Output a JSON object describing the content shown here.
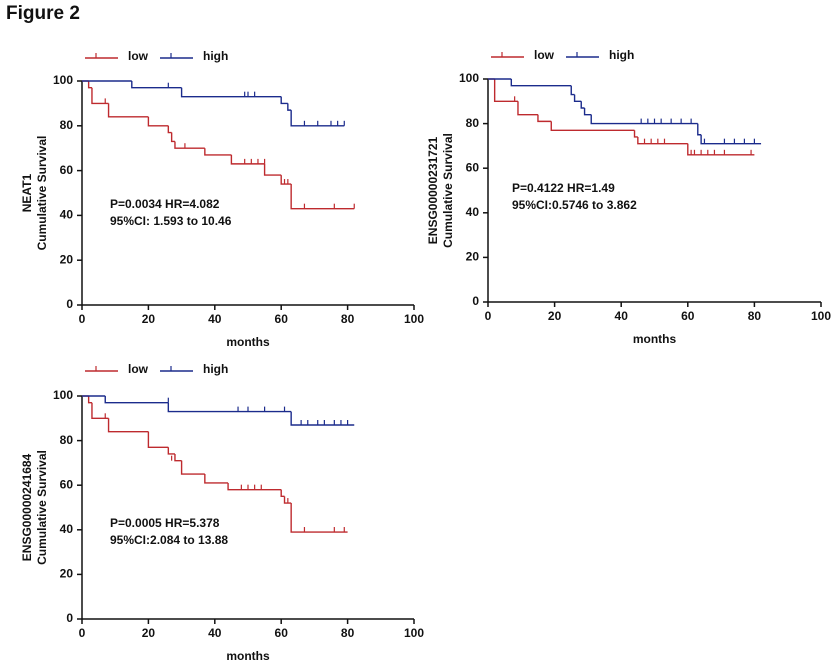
{
  "figure_title": "Figure 2",
  "chart_data": [
    {
      "type": "step",
      "gene": "NEAT1",
      "ylabel": "Cumulative Survival",
      "xlabel": "months",
      "annotations": [
        "P=0.0034 HR=4.082",
        "95%CI: 1.593 to 10.46"
      ],
      "xlim": [
        0,
        100
      ],
      "xticks": [
        0,
        20,
        40,
        60,
        80,
        100
      ],
      "ylim": [
        0,
        100
      ],
      "yticks": [
        0,
        20,
        40,
        60,
        80,
        100
      ],
      "series": [
        {
          "name": "low",
          "color": "#be2a2e",
          "x": [
            0,
            2,
            3,
            8,
            20,
            26,
            27,
            28,
            37,
            45,
            55,
            60,
            63,
            82
          ],
          "values": [
            100,
            97,
            90,
            84,
            80,
            77,
            73,
            70,
            67,
            63,
            58,
            54,
            43,
            43
          ],
          "censored_x": [
            7,
            31,
            49,
            51,
            53,
            55,
            61,
            62,
            67,
            76,
            82
          ],
          "censored_values": [
            90,
            70,
            63,
            63,
            63,
            63,
            54,
            54,
            43,
            43,
            43
          ]
        },
        {
          "name": "high",
          "color": "#1b2b8c",
          "x": [
            0,
            15,
            30,
            60,
            62,
            63,
            79
          ],
          "values": [
            100,
            97,
            93,
            90,
            87,
            80,
            80
          ],
          "censored_x": [
            26,
            49,
            50,
            52,
            67,
            71,
            75,
            77,
            79
          ],
          "censored_values": [
            97,
            93,
            93,
            93,
            80,
            80,
            80,
            80,
            80
          ]
        }
      ]
    },
    {
      "type": "step",
      "gene": "ENSG00000231721",
      "ylabel": "Cumulative Survival",
      "xlabel": "months",
      "annotations": [
        "P=0.4122 HR=1.49",
        "95%CI:0.5746 to 3.862"
      ],
      "xlim": [
        0,
        100
      ],
      "xticks": [
        0,
        20,
        40,
        60,
        80,
        100
      ],
      "ylim": [
        0,
        100
      ],
      "yticks": [
        0,
        20,
        40,
        60,
        80,
        100
      ],
      "series": [
        {
          "name": "low",
          "color": "#be2a2e",
          "x": [
            0,
            2,
            9,
            15,
            19,
            44,
            45,
            60,
            80
          ],
          "values": [
            100,
            90,
            84,
            81,
            77,
            74,
            71,
            66,
            66
          ],
          "censored_x": [
            8,
            47,
            49,
            51,
            53,
            61,
            62,
            64,
            66,
            68,
            71,
            79
          ],
          "censored_values": [
            90,
            71,
            71,
            71,
            71,
            66,
            66,
            66,
            66,
            66,
            66,
            66
          ]
        },
        {
          "name": "high",
          "color": "#1b2b8c",
          "x": [
            0,
            7,
            25,
            26,
            28,
            29,
            31,
            63,
            64,
            82
          ],
          "values": [
            100,
            97,
            93,
            90,
            87,
            84,
            80,
            75,
            71,
            71
          ],
          "censored_x": [
            46,
            48,
            50,
            52,
            55,
            58,
            61,
            65,
            71,
            74,
            77,
            80
          ],
          "censored_values": [
            80,
            80,
            80,
            80,
            80,
            80,
            80,
            71,
            71,
            71,
            71,
            71
          ]
        }
      ]
    },
    {
      "type": "step",
      "gene": "ENSG00000241684",
      "ylabel": "Cumulative Survival",
      "xlabel": "months",
      "annotations": [
        "P=0.0005 HR=5.378",
        "95%CI:2.084 to 13.88"
      ],
      "xlim": [
        0,
        100
      ],
      "xticks": [
        0,
        20,
        40,
        60,
        80,
        100
      ],
      "ylim": [
        0,
        100
      ],
      "yticks": [
        0,
        20,
        40,
        60,
        80,
        100
      ],
      "series": [
        {
          "name": "low",
          "color": "#be2a2e",
          "x": [
            0,
            2,
            3,
            8,
            20,
            26,
            28,
            30,
            37,
            44,
            60,
            61,
            63,
            80
          ],
          "values": [
            100,
            97,
            90,
            84,
            77,
            74,
            71,
            65,
            61,
            58,
            55,
            52,
            39,
            39
          ],
          "censored_x": [
            7,
            27,
            48,
            50,
            52,
            54,
            62,
            67,
            76,
            79
          ],
          "censored_values": [
            90,
            71,
            58,
            58,
            58,
            58,
            52,
            39,
            39,
            39
          ]
        },
        {
          "name": "high",
          "color": "#1b2b8c",
          "x": [
            0,
            7,
            26,
            63,
            82
          ],
          "values": [
            100,
            97,
            93,
            87,
            87
          ],
          "censored_x": [
            26,
            47,
            50,
            55,
            61,
            66,
            68,
            71,
            73,
            76,
            78,
            80
          ],
          "censored_values": [
            97,
            93,
            93,
            93,
            93,
            87,
            87,
            87,
            87,
            87,
            87,
            87
          ]
        }
      ]
    }
  ]
}
